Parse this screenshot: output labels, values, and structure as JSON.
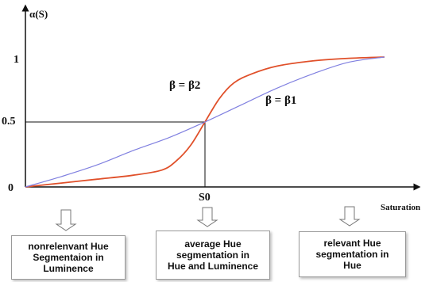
{
  "chart_data": {
    "type": "line",
    "title": "",
    "ylabel": "α(S)",
    "xlabel": "Saturation",
    "xlim": [
      0,
      1
    ],
    "ylim": [
      0,
      1
    ],
    "y_ticks": [
      "0",
      "0.5",
      "1"
    ],
    "x_marker": {
      "label": "S0",
      "value": 0.5
    },
    "series": [
      {
        "name": "β = β2",
        "color": "#e0502a",
        "x": [
          0.0,
          0.1,
          0.2,
          0.3,
          0.38,
          0.42,
          0.46,
          0.5,
          0.54,
          0.58,
          0.63,
          0.7,
          0.8,
          0.9,
          1.0
        ],
        "y": [
          0.0,
          0.03,
          0.06,
          0.09,
          0.13,
          0.2,
          0.32,
          0.5,
          0.68,
          0.8,
          0.87,
          0.93,
          0.97,
          0.99,
          1.0
        ]
      },
      {
        "name": "β = β1",
        "color": "#8080e0",
        "x": [
          0.0,
          0.1,
          0.2,
          0.3,
          0.4,
          0.5,
          0.6,
          0.7,
          0.8,
          0.9,
          1.0
        ],
        "y": [
          0.0,
          0.08,
          0.17,
          0.28,
          0.38,
          0.5,
          0.63,
          0.76,
          0.87,
          0.96,
          1.0
        ]
      }
    ],
    "annotations": [
      "β = β2",
      "β = β1"
    ]
  },
  "captions": {
    "left": "nonrelenvant Hue\nSegmentaion in\nLuminence",
    "middle": "average Hue\nsegmentation in\nHue and Luminence",
    "right": "relevant Hue\nsegmentation in\nHue"
  }
}
